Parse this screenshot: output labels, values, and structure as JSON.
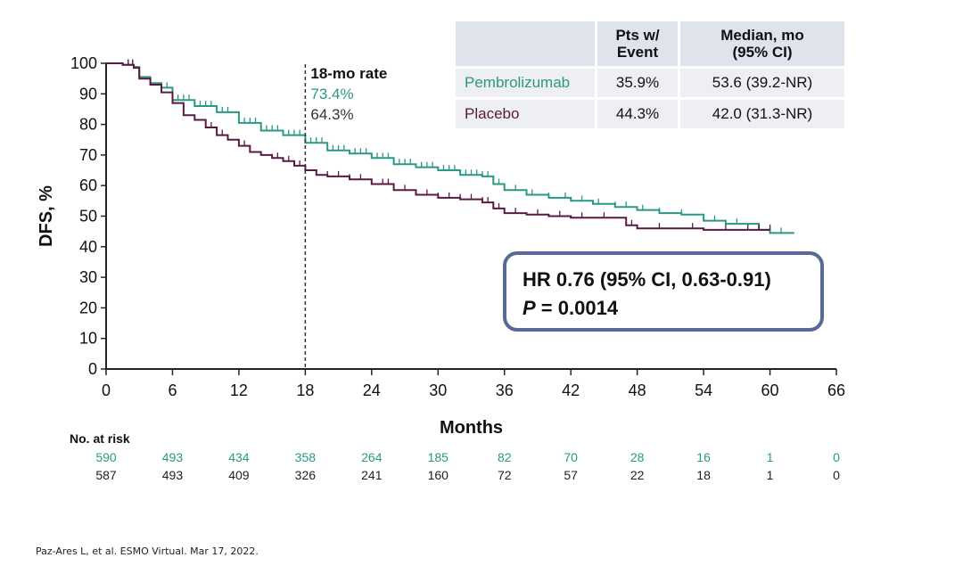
{
  "colors": {
    "pembrolizumab": "#2a9882",
    "placebo": "#5a1a40",
    "box_border": "#5a6a96",
    "axis": "#222222"
  },
  "chart_data": {
    "type": "line",
    "subtype": "kaplan-meier",
    "xlabel": "Months",
    "ylabel": "DFS, %",
    "xlim": [
      0,
      66
    ],
    "ylim": [
      0,
      100
    ],
    "xticks": [
      0,
      6,
      12,
      18,
      24,
      30,
      36,
      42,
      48,
      54,
      60,
      66
    ],
    "yticks": [
      0,
      10,
      20,
      30,
      40,
      50,
      60,
      70,
      80,
      90,
      100
    ],
    "grid": false,
    "reference_line": {
      "x": 18,
      "label": "18-mo rate"
    },
    "series": [
      {
        "name": "Pembrolizumab",
        "rate_18mo": "73.4%",
        "points": [
          [
            0,
            100
          ],
          [
            1.5,
            99.5
          ],
          [
            2.5,
            98.8
          ],
          [
            3,
            95.5
          ],
          [
            4,
            93.5
          ],
          [
            5,
            92
          ],
          [
            6,
            88
          ],
          [
            8,
            86
          ],
          [
            10,
            84
          ],
          [
            12,
            80.5
          ],
          [
            14,
            78
          ],
          [
            16,
            76.5
          ],
          [
            18,
            74
          ],
          [
            20,
            71.5
          ],
          [
            22,
            70.5
          ],
          [
            24,
            69
          ],
          [
            26,
            67
          ],
          [
            28,
            66
          ],
          [
            30,
            65
          ],
          [
            32,
            63.5
          ],
          [
            34,
            63
          ],
          [
            35,
            60.5
          ],
          [
            36,
            58.5
          ],
          [
            38,
            57
          ],
          [
            40,
            56
          ],
          [
            42,
            55
          ],
          [
            44,
            54
          ],
          [
            46,
            53
          ],
          [
            48,
            52
          ],
          [
            50,
            51
          ],
          [
            52,
            50.5
          ],
          [
            54,
            48.5
          ],
          [
            56,
            47.5
          ],
          [
            58,
            47.5
          ],
          [
            59,
            45.5
          ],
          [
            60,
            44.5
          ],
          [
            62.2,
            44.5
          ]
        ],
        "censor_x": [
          2,
          2.4,
          5.5,
          6.5,
          7,
          7.5,
          8.5,
          9,
          9.5,
          10.5,
          11,
          12.5,
          13,
          13.5,
          14.5,
          15,
          15.5,
          16.5,
          17,
          17.5,
          18.5,
          19,
          19.5,
          20.5,
          21,
          21.5,
          22.5,
          23,
          23.5,
          24.5,
          25,
          25.5,
          26.5,
          27,
          27.5,
          28.5,
          29,
          29.5,
          30.5,
          31,
          31.5,
          32.5,
          33,
          33.5,
          34,
          34.5,
          35.5,
          37,
          38.5,
          40,
          41.5,
          43,
          44.5,
          46,
          47,
          48.5,
          50,
          52,
          55,
          57,
          59,
          60,
          61
        ]
      },
      {
        "name": "Placebo",
        "rate_18mo": "64.3%",
        "points": [
          [
            0,
            100
          ],
          [
            1.5,
            99.5
          ],
          [
            2.5,
            98.5
          ],
          [
            3,
            95
          ],
          [
            4,
            93
          ],
          [
            5,
            90.5
          ],
          [
            6,
            87
          ],
          [
            7,
            83
          ],
          [
            8,
            81.5
          ],
          [
            9,
            79
          ],
          [
            10,
            76.5
          ],
          [
            11,
            75
          ],
          [
            12,
            73
          ],
          [
            13,
            71
          ],
          [
            14,
            70
          ],
          [
            15,
            69
          ],
          [
            16,
            68
          ],
          [
            17,
            66.5
          ],
          [
            18,
            65
          ],
          [
            19,
            63.5
          ],
          [
            20,
            63
          ],
          [
            22,
            62
          ],
          [
            24,
            60.5
          ],
          [
            26,
            58.5
          ],
          [
            28,
            57
          ],
          [
            30,
            56
          ],
          [
            32,
            55.5
          ],
          [
            34,
            54.5
          ],
          [
            35,
            52.5
          ],
          [
            36,
            51
          ],
          [
            38,
            50.5
          ],
          [
            40,
            50
          ],
          [
            42,
            49.5
          ],
          [
            44,
            49.5
          ],
          [
            46,
            49.5
          ],
          [
            47,
            47
          ],
          [
            48,
            46
          ],
          [
            50,
            46
          ],
          [
            52,
            46
          ],
          [
            54,
            45.5
          ],
          [
            56,
            45.5
          ],
          [
            58,
            45.5
          ],
          [
            60,
            45.5
          ]
        ],
        "censor_x": [
          2,
          2.4,
          9.5,
          10.5,
          12.5,
          15.5,
          16.5,
          17.5,
          19,
          20,
          21,
          22,
          23,
          24,
          25,
          25.5,
          26,
          27,
          28,
          29,
          30,
          31,
          32,
          33,
          34,
          34.5,
          35.5,
          37,
          39,
          41,
          43,
          45,
          47.5,
          50,
          53,
          56,
          58,
          59,
          60
        ]
      }
    ]
  },
  "legend_table": {
    "headers": [
      "",
      "Pts w/ Event",
      "Median, mo (95% CI)"
    ],
    "header_lines": [
      [
        "",
        ""
      ],
      [
        "Pts w/",
        "Event"
      ],
      [
        "Median, mo",
        "(95% CI)"
      ]
    ],
    "rows": [
      {
        "arm": "Pembrolizumab",
        "events": "35.9%",
        "median": "53.6 (39.2-NR)"
      },
      {
        "arm": "Placebo",
        "events": "44.3%",
        "median": "42.0 (31.3-NR)"
      }
    ]
  },
  "hr_box": {
    "line1": "HR 0.76 (95% CI, 0.63-0.91)",
    "p_label": "P",
    "p_value": " = 0.0014"
  },
  "risk_table": {
    "title": "No. at risk",
    "times": [
      0,
      6,
      12,
      18,
      24,
      30,
      36,
      42,
      48,
      54,
      60,
      66
    ],
    "pembrolizumab": [
      "590",
      "493",
      "434",
      "358",
      "264",
      "185",
      "82",
      "70",
      "28",
      "16",
      "1",
      "0"
    ],
    "placebo": [
      "587",
      "493",
      "409",
      "326",
      "241",
      "160",
      "72",
      "57",
      "22",
      "18",
      "1",
      "0"
    ]
  },
  "citation": "Paz-Ares L, et al. ESMO Virtual. Mar 17, 2022."
}
